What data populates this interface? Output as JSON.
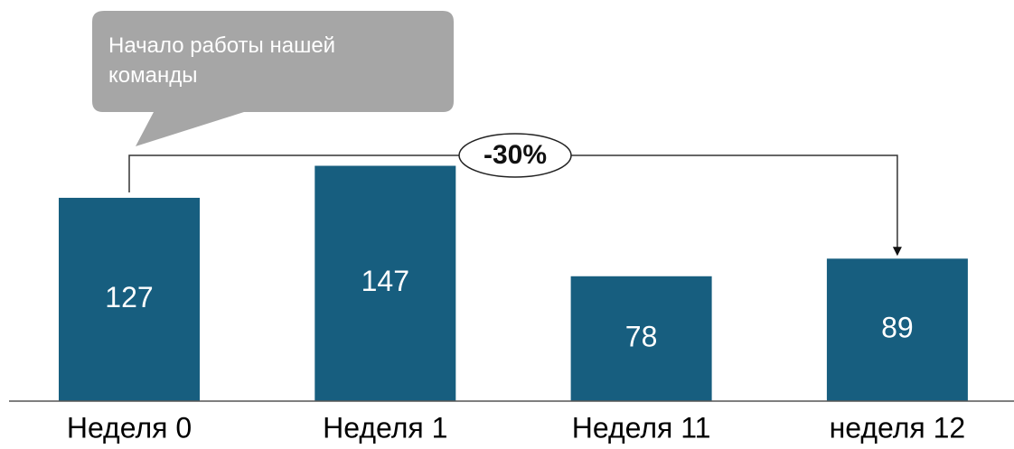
{
  "chart_data": {
    "type": "bar",
    "categories": [
      "Неделя 0",
      "Неделя 1",
      "Неделя 11",
      "неделя 12"
    ],
    "values": [
      127,
      147,
      78,
      89
    ],
    "color": "#175e7f",
    "annotations": {
      "callout": "Начало работы нашей команды",
      "change": "-30%"
    }
  }
}
